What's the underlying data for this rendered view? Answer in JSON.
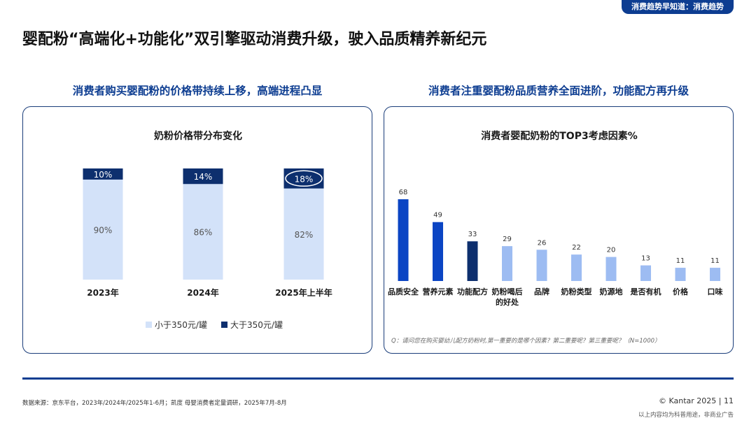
{
  "header": {
    "tag": "消费趋势早知道：消费趋势",
    "title": "婴配粉“高端化+功能化”双引擎驱动消费升级，驶入品质精养新纪元"
  },
  "left": {
    "subtitle": "消费者购买婴配粉的价格带持续上移，高端进程凸显"
  },
  "right": {
    "subtitle": "消费者注重婴配粉品质营养全面进阶，功能配方再升级"
  },
  "chart_data": [
    {
      "type": "bar",
      "stacked": true,
      "title": "奶粉价格带分布变化",
      "categories": [
        "2023年",
        "2024年",
        "2025年上半年"
      ],
      "series": [
        {
          "name": "小于350元/罐",
          "values": [
            90,
            86,
            82
          ],
          "labels": [
            "90%",
            "86%",
            "82%"
          ],
          "color": "#d3e2f9"
        },
        {
          "name": "大于350元/罐",
          "values": [
            10,
            14,
            18
          ],
          "labels": [
            "10%",
            "14%",
            "18%"
          ],
          "color": "#0d2f6e"
        }
      ],
      "highlight_category": "2025年上半年",
      "legend_position": "bottom",
      "ylim": [
        0,
        100
      ]
    },
    {
      "type": "bar",
      "title": "消费者婴配奶粉的TOP3考虑因素%",
      "categories": [
        "品质安全",
        "营养元素",
        "功能配方",
        "奶粉喝后的好处",
        "品牌",
        "奶粉类型",
        "奶源地",
        "是否有机",
        "价格",
        "口味"
      ],
      "values": [
        68,
        49,
        33,
        29,
        26,
        22,
        20,
        13,
        11,
        11
      ],
      "colors": [
        "#0b45c4",
        "#0b45c4",
        "#0d2f6e",
        "#9dbcf2",
        "#9dbcf2",
        "#9dbcf2",
        "#9dbcf2",
        "#9dbcf2",
        "#9dbcf2",
        "#9dbcf2"
      ],
      "note": "Q：请问您在购买婴幼儿配方奶粉时,第一重要的是哪个因素？第二重要呢？第三重要呢？（N=1000）",
      "ylim": [
        0,
        70
      ]
    }
  ],
  "footer": {
    "source": "数据来源：京东平台，2023年/2024年/2025年1-6月；凯度 母婴消费者定量调研，2025年7月-8月",
    "copyright": "© Kantar 2025 | 11",
    "disclaimer": "以上内容均为科普用途，非商业广告"
  }
}
